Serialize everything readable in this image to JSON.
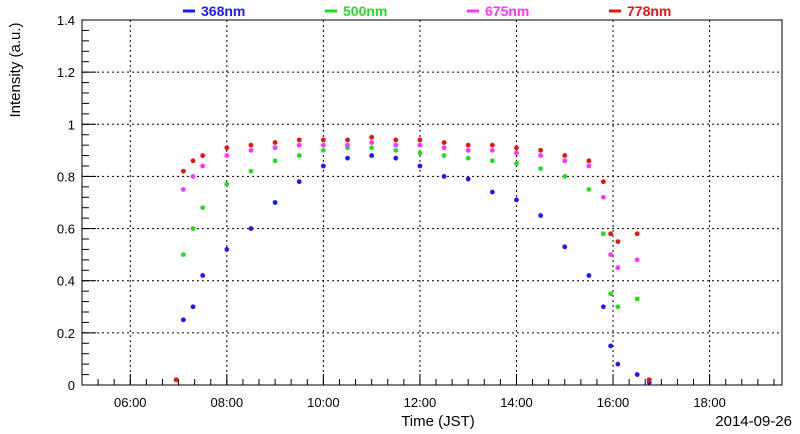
{
  "chart_data": {
    "type": "scatter",
    "title": "",
    "xlabel": "Time (JST)",
    "ylabel": "Intensity (a.u.)",
    "date_label": "2014-09-26",
    "x_unit": "hours JST",
    "xlim": [
      5.0,
      19.5
    ],
    "ylim": [
      0,
      1.4
    ],
    "x_ticks": [
      6,
      8,
      10,
      12,
      14,
      16,
      18
    ],
    "x_tick_labels": [
      "06:00",
      "08:00",
      "10:00",
      "12:00",
      "14:00",
      "16:00",
      "18:00"
    ],
    "y_ticks": [
      0,
      0.2,
      0.4,
      0.6,
      0.8,
      1.0,
      1.2,
      1.4
    ],
    "y_tick_labels": [
      "0",
      "0.2",
      "0.4",
      "0.6",
      "0.8",
      "1",
      "1.2",
      "1.4"
    ],
    "grid": true,
    "legend_position": "top",
    "series": [
      {
        "name": "368nm",
        "color": "#1a1aff",
        "x": [
          6.95,
          7.1,
          7.3,
          7.5,
          8.0,
          8.5,
          9.0,
          9.5,
          10.0,
          10.5,
          11.0,
          11.5,
          12.0,
          12.5,
          13.0,
          13.5,
          14.0,
          14.5,
          15.0,
          15.5,
          15.8,
          15.95,
          16.1,
          16.5,
          16.75
        ],
        "y": [
          0.02,
          0.25,
          0.3,
          0.42,
          0.52,
          0.6,
          0.7,
          0.78,
          0.84,
          0.87,
          0.88,
          0.87,
          0.84,
          0.8,
          0.79,
          0.74,
          0.71,
          0.65,
          0.53,
          0.42,
          0.3,
          0.15,
          0.08,
          0.04,
          0.01
        ]
      },
      {
        "name": "500nm",
        "color": "#22dd22",
        "x": [
          6.95,
          7.1,
          7.3,
          7.5,
          8.0,
          8.5,
          9.0,
          9.5,
          10.0,
          10.5,
          11.0,
          11.5,
          12.0,
          12.5,
          13.0,
          13.5,
          14.0,
          14.5,
          15.0,
          15.5,
          15.8,
          15.95,
          16.1,
          16.5,
          16.75
        ],
        "y": [
          0.02,
          0.5,
          0.6,
          0.68,
          0.77,
          0.82,
          0.86,
          0.88,
          0.9,
          0.91,
          0.91,
          0.9,
          0.89,
          0.88,
          0.87,
          0.86,
          0.85,
          0.83,
          0.8,
          0.75,
          0.58,
          0.35,
          0.3,
          0.33,
          0.02
        ]
      },
      {
        "name": "675nm",
        "color": "#ff33ff",
        "x": [
          6.95,
          7.1,
          7.3,
          7.5,
          8.0,
          8.5,
          9.0,
          9.5,
          10.0,
          10.5,
          11.0,
          11.5,
          12.0,
          12.5,
          13.0,
          13.5,
          14.0,
          14.5,
          15.0,
          15.5,
          15.8,
          15.95,
          16.1,
          16.5,
          16.75
        ],
        "y": [
          0.02,
          0.75,
          0.8,
          0.84,
          0.88,
          0.9,
          0.91,
          0.92,
          0.92,
          0.92,
          0.93,
          0.92,
          0.92,
          0.91,
          0.9,
          0.9,
          0.89,
          0.88,
          0.86,
          0.84,
          0.72,
          0.5,
          0.45,
          0.48,
          0.02
        ]
      },
      {
        "name": "778nm",
        "color": "#ee1111",
        "x": [
          6.95,
          7.1,
          7.3,
          7.5,
          8.0,
          8.5,
          9.0,
          9.5,
          10.0,
          10.5,
          11.0,
          11.5,
          12.0,
          12.5,
          13.0,
          13.5,
          14.0,
          14.5,
          15.0,
          15.5,
          15.8,
          15.95,
          16.1,
          16.5,
          16.75
        ],
        "y": [
          0.02,
          0.82,
          0.86,
          0.88,
          0.91,
          0.92,
          0.93,
          0.94,
          0.94,
          0.94,
          0.95,
          0.94,
          0.94,
          0.93,
          0.92,
          0.92,
          0.91,
          0.9,
          0.88,
          0.86,
          0.78,
          0.58,
          0.55,
          0.58,
          0.02
        ]
      }
    ]
  }
}
